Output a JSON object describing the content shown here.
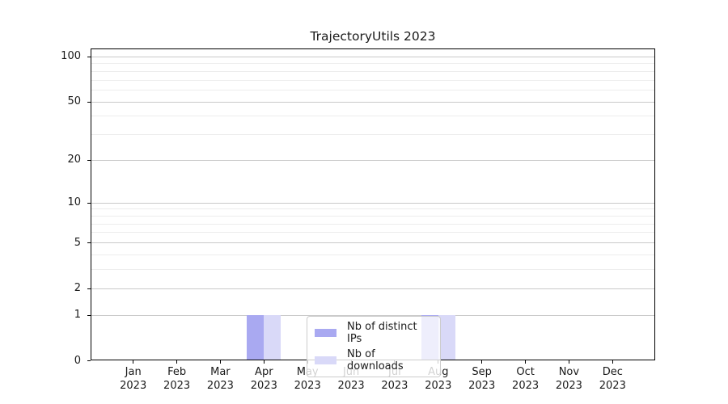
{
  "chart_data": {
    "type": "bar",
    "title": "TrajectoryUtils 2023",
    "categories": [
      "Jan",
      "Feb",
      "Mar",
      "Apr",
      "May",
      "Jun",
      "Jul",
      "Aug",
      "Sep",
      "Oct",
      "Nov",
      "Dec"
    ],
    "category_year": "2023",
    "series": [
      {
        "name": "Nb of distinct IPs",
        "color": "#a9a9f1",
        "values": [
          0,
          0,
          0,
          1,
          0,
          0,
          0,
          1,
          0,
          0,
          0,
          0
        ]
      },
      {
        "name": "Nb of downloads",
        "color": "#d9d9f8",
        "values": [
          0,
          0,
          0,
          1,
          0,
          0,
          0,
          1,
          0,
          0,
          0,
          0
        ]
      }
    ],
    "yscale": "log1p",
    "y_major_ticks": [
      0,
      1,
      2,
      5,
      10,
      20,
      50,
      100
    ],
    "y_minor_ticks": [
      3,
      4,
      6,
      7,
      8,
      9,
      30,
      40,
      60,
      70,
      80,
      90
    ],
    "ylim": [
      0,
      113
    ],
    "xlabel": "",
    "ylabel": "",
    "grid": "horizontal-major-and-minor",
    "legend_position": "lower center"
  }
}
